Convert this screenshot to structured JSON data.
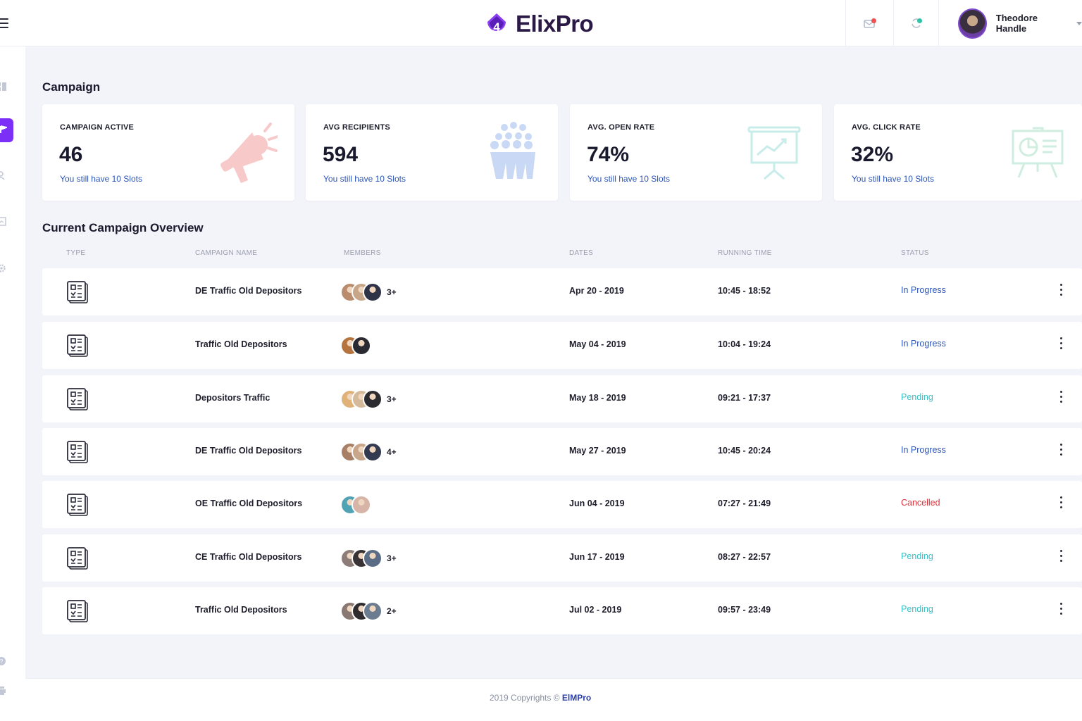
{
  "header": {
    "logo_badge": "4",
    "logo_text": "ElixPro",
    "user_name": "Theodore Handle"
  },
  "colors": {
    "brand_purple": "#7b2ff7",
    "in_progress": "#2c55b8",
    "pending": "#3cc0c6",
    "cancelled": "#e0303a"
  },
  "page": {
    "title": "Campaign",
    "overview_title": "Current Campaign Overview"
  },
  "stats": [
    {
      "label": "CAMPAIGN ACTIVE",
      "value": "46",
      "note": "You still have 10 Slots",
      "icon": "megaphone-icon"
    },
    {
      "label": "AVG RECIPIENTS",
      "value": "594",
      "note": "You still have 10 Slots",
      "icon": "audience-icon"
    },
    {
      "label": "AVG. OPEN RATE",
      "value": "74%",
      "note": "You still have 10 Slots",
      "icon": "presentation-chart-icon"
    },
    {
      "label": "AVG. CLICK RATE",
      "value": "32%",
      "note": "You still have 10 Slots",
      "icon": "presentation-pie-icon"
    }
  ],
  "table": {
    "columns": [
      "TYPE",
      "CAMPAIGN NAME",
      "MEMBERS",
      "DATES",
      "RUNNING TIME",
      "STATUS"
    ],
    "rows": [
      {
        "name": "DE Traffic Old Depositors",
        "more": "3+",
        "date": "Apr 20 - 2019",
        "time": "10:45 - 18:52",
        "status": "In Progress"
      },
      {
        "name": "Traffic Old Depositors",
        "more": "",
        "date": "May 04 - 2019",
        "time": "10:04 - 19:24",
        "status": "In Progress"
      },
      {
        "name": "Depositors Traffic",
        "more": "3+",
        "date": "May 18 - 2019",
        "time": "09:21 - 17:37",
        "status": "Pending"
      },
      {
        "name": "DE Traffic Old Depositors",
        "more": "4+",
        "date": "May 27 - 2019",
        "time": "10:45 - 20:24",
        "status": "In Progress"
      },
      {
        "name": "OE Traffic Old Depositors",
        "more": "",
        "date": "Jun 04 - 2019",
        "time": "07:27 - 21:49",
        "status": "Cancelled"
      },
      {
        "name": "CE Traffic Old Depositors",
        "more": "3+",
        "date": "Jun 17 - 2019",
        "time": "08:27 - 22:57",
        "status": "Pending"
      },
      {
        "name": "Traffic Old Depositors",
        "more": "2+",
        "date": "Jul 02 - 2019",
        "time": "09:57 - 23:49",
        "status": "Pending"
      }
    ]
  },
  "footer": {
    "copyright": "2019 Copyrights © ",
    "brand": "ElMPro"
  }
}
